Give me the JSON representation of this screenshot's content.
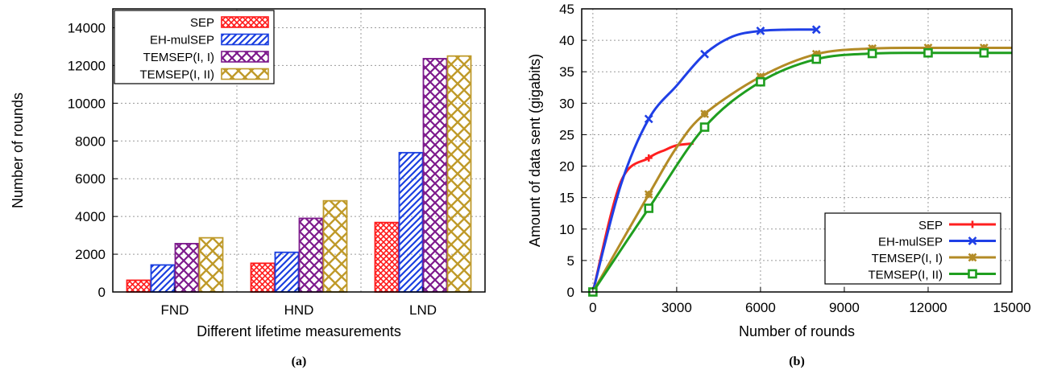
{
  "colors": {
    "SEP": "#ff1a1a",
    "EH-mulSEP": "#1a3fe0",
    "TEMSEP(I, I)": "#7d1a8c",
    "TEMSEP(I, II)": "#bf9a2a",
    "line_SEP": "#ff1f1f",
    "line_EH-mulSEP": "#1f3fe6",
    "line_TEMSEP(I, I)": "#b38b26",
    "line_TEMSEP(I, II)": "#1f9e1f"
  },
  "chart_data": [
    {
      "type": "bar",
      "caption": "(a)",
      "xlabel": "Different lifetime measurements",
      "ylabel": "Number of rounds",
      "categories": [
        "FND",
        "HND",
        "LND"
      ],
      "ylim": [
        0,
        15000
      ],
      "yticks": [
        0,
        2000,
        4000,
        6000,
        8000,
        10000,
        12000,
        14000
      ],
      "grid": true,
      "legend": "top-left",
      "series": [
        {
          "name": "SEP",
          "values": [
            620,
            1520,
            3680
          ]
        },
        {
          "name": "EH-mulSEP",
          "values": [
            1430,
            2100,
            7380
          ]
        },
        {
          "name": "TEMSEP(I, I)",
          "values": [
            2560,
            3900,
            12360
          ]
        },
        {
          "name": "TEMSEP(I, II)",
          "values": [
            2870,
            4830,
            12500
          ]
        }
      ]
    },
    {
      "type": "line",
      "caption": "(b)",
      "xlabel": "Number of rounds",
      "ylabel": "Amount of data sent (gigabits)",
      "xlim": [
        -400,
        15000
      ],
      "ylim": [
        0,
        45
      ],
      "xticks": [
        0,
        3000,
        6000,
        9000,
        12000,
        15000
      ],
      "yticks": [
        0,
        5,
        10,
        15,
        20,
        25,
        30,
        35,
        40,
        45
      ],
      "grid": true,
      "legend": "bottom-right",
      "series": [
        {
          "name": "SEP",
          "marker": "plus",
          "x": [
            0,
            1000,
            2000,
            2600,
            3000,
            3600
          ],
          "y": [
            0,
            17.5,
            21.3,
            22.6,
            23.3,
            23.6
          ],
          "marked": [
            0,
            2000
          ]
        },
        {
          "name": "EH-mulSEP",
          "marker": "x",
          "x": [
            0,
            1000,
            2000,
            3000,
            4000,
            5000,
            6000,
            7000,
            8000
          ],
          "y": [
            0,
            17.0,
            27.5,
            32.8,
            37.8,
            40.6,
            41.5,
            41.7,
            41.7
          ],
          "marked": [
            0,
            2000,
            4000,
            6000,
            8000
          ]
        },
        {
          "name": "TEMSEP(I, I)",
          "marker": "star",
          "x": [
            0,
            2000,
            3000,
            4000,
            6000,
            8000,
            10000,
            12000,
            14000,
            15000
          ],
          "y": [
            0,
            15.5,
            23.0,
            28.3,
            34.2,
            37.8,
            38.7,
            38.8,
            38.8,
            38.8
          ],
          "marked": [
            0,
            2000,
            4000,
            6000,
            8000,
            10000,
            12000,
            14000
          ]
        },
        {
          "name": "TEMSEP(I, II)",
          "marker": "square",
          "x": [
            0,
            2000,
            4000,
            6000,
            8000,
            10000,
            12000,
            14000,
            15000
          ],
          "y": [
            0,
            13.3,
            26.2,
            33.4,
            37.0,
            37.9,
            38.0,
            38.0,
            38.0
          ],
          "marked": [
            0,
            2000,
            4000,
            6000,
            8000,
            10000,
            12000,
            14000
          ]
        }
      ]
    }
  ]
}
